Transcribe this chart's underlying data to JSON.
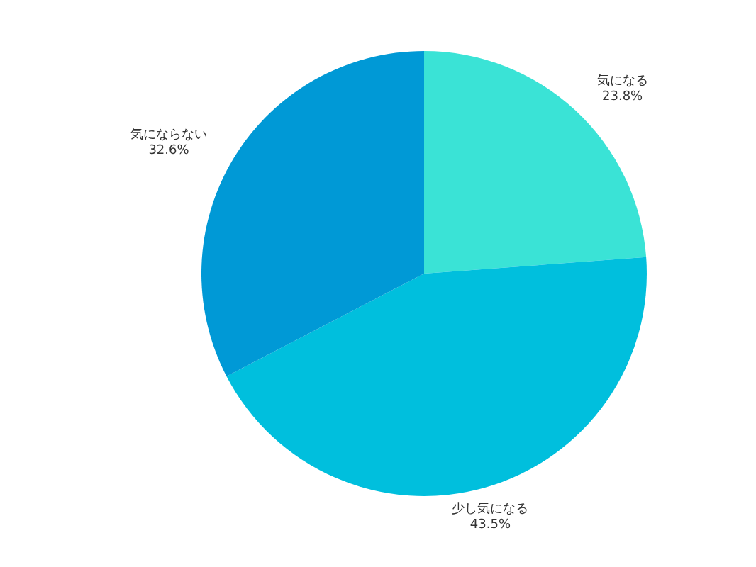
{
  "chart_data": {
    "type": "pie",
    "categories": [
      "気になる",
      "少し気になる",
      "気にならない"
    ],
    "values": [
      23.8,
      43.5,
      32.6
    ],
    "colors": [
      "#3ae3d6",
      "#00bfdd",
      "#0099d6"
    ],
    "value_labels": [
      "23.8%",
      "43.5%",
      "32.6%"
    ]
  }
}
